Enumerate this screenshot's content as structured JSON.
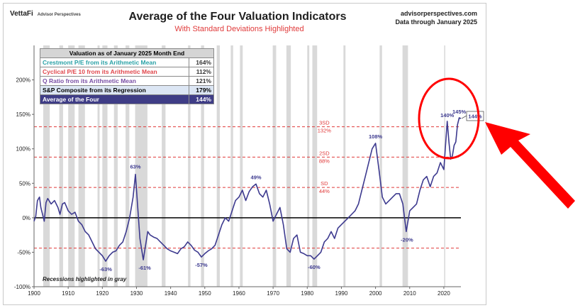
{
  "header": {
    "brand": "VettaFi",
    "brand_sub": "Advisor Perspectives",
    "title": "Average of the Four Valuation Indicators",
    "subtitle": "With Standard Deviations Highlighted",
    "source_line1": "advisorperspectives.com",
    "source_line2": "Data through January 2025"
  },
  "table": {
    "header": "Valuation as of January 2025 Month End",
    "rows": [
      {
        "label": "Crestmont P/E from its Arithmetic Mean",
        "value": "164%",
        "color": "#2aa1a6"
      },
      {
        "label": "Cyclical P/E 10 from its Arithmetic Mean",
        "value": "112%",
        "color": "#e0474c"
      },
      {
        "label": "Q Ratio from its Arithmetic Mean",
        "value": "121%",
        "color": "#7a4fa5"
      },
      {
        "label": "S&P Composite from its Regression",
        "value": "179%",
        "color": "#000000"
      },
      {
        "label": "Average of the Four",
        "value": "144%",
        "color": "#ffffff"
      }
    ]
  },
  "footnote": "Recessions highlighted in gray",
  "chart_data": {
    "type": "line",
    "title": "Average of the Four Valuation Indicators",
    "subtitle": "With Standard Deviations Highlighted",
    "xlim": [
      1900,
      2025
    ],
    "ylim": [
      -100,
      250
    ],
    "x_ticks": [
      1900,
      1910,
      1920,
      1930,
      1940,
      1950,
      1960,
      1970,
      1980,
      1990,
      2000,
      2010,
      2020
    ],
    "x_tick_labels": [
      "1900",
      "1910",
      "1920",
      "1930",
      "1940",
      "1950",
      "1960",
      "1970",
      "1980",
      "1990",
      "2000",
      "2010",
      "2020"
    ],
    "y_ticks": [
      -100,
      -50,
      0,
      50,
      100,
      150,
      200
    ],
    "y_tick_labels": [
      "-100%",
      "-50%",
      "0%",
      "50%",
      "100%",
      "150%",
      "200%"
    ],
    "series": [
      {
        "name": "Average of the Four",
        "color": "#3d3a8f",
        "x": [
          1900,
          1900.5,
          1901,
          1901.6,
          1902,
          1903,
          1903.5,
          1904,
          1905,
          1906,
          1907,
          1907.6,
          1908.3,
          1909,
          1910,
          1911,
          1912,
          1913,
          1914,
          1915,
          1916,
          1917,
          1918,
          1919,
          1920,
          1921,
          1922,
          1923,
          1924,
          1925,
          1926,
          1927,
          1928,
          1929,
          1929.7,
          1930.3,
          1931,
          1932,
          1932.5,
          1933.3,
          1934,
          1935,
          1936,
          1937,
          1938,
          1939,
          1940,
          1941,
          1942,
          1943,
          1944,
          1945,
          1946,
          1947,
          1948,
          1949,
          1950,
          1951,
          1952,
          1953,
          1954,
          1955,
          1956,
          1957,
          1958,
          1959,
          1960,
          1961,
          1962,
          1963,
          1964,
          1965,
          1966,
          1967,
          1968,
          1969,
          1970,
          1971,
          1972,
          1973,
          1974,
          1975,
          1976,
          1977,
          1978,
          1979,
          1980,
          1981,
          1982,
          1983,
          1984,
          1985,
          1986,
          1987,
          1988,
          1989,
          1990,
          1991,
          1992,
          1993,
          1994,
          1995,
          1996,
          1997,
          1998,
          1999,
          2000,
          2001,
          2002,
          2003,
          2004,
          2005,
          2006,
          2007,
          2008,
          2009,
          2010,
          2011,
          2012,
          2013,
          2014,
          2015,
          2016,
          2017,
          2018,
          2019,
          2020,
          2021,
          2021.5,
          2022,
          2022.5,
          2023,
          2023.5,
          2024,
          2024.5,
          2025
        ],
        "y": [
          -5,
          2,
          25,
          30,
          15,
          -5,
          22,
          28,
          20,
          25,
          15,
          5,
          20,
          22,
          10,
          5,
          8,
          -5,
          -10,
          -20,
          -25,
          -35,
          -45,
          -50,
          -55,
          -63,
          -55,
          -50,
          -48,
          -40,
          -35,
          -20,
          0,
          30,
          63,
          20,
          -30,
          -61,
          -45,
          -20,
          -25,
          -28,
          -30,
          -35,
          -40,
          -45,
          -48,
          -50,
          -52,
          -45,
          -42,
          -35,
          -40,
          -47,
          -50,
          -57,
          -52,
          -48,
          -45,
          -40,
          -25,
          -10,
          0,
          -5,
          10,
          25,
          30,
          40,
          25,
          38,
          45,
          49,
          35,
          30,
          40,
          20,
          -5,
          5,
          15,
          -10,
          -45,
          -50,
          -30,
          -25,
          -50,
          -52,
          -55,
          -55,
          -60,
          -55,
          -50,
          -35,
          -30,
          -20,
          -30,
          -15,
          -10,
          -5,
          0,
          5,
          10,
          20,
          40,
          60,
          80,
          100,
          108,
          70,
          30,
          20,
          25,
          30,
          35,
          35,
          20,
          -20,
          10,
          15,
          20,
          40,
          55,
          60,
          45,
          60,
          65,
          80,
          70,
          140,
          110,
          85,
          90,
          105,
          110,
          135,
          145,
          144
        ]
      }
    ],
    "reference_lines": [
      {
        "value": 132,
        "label": "3SD",
        "value_label": "132%",
        "style": "dashed",
        "color": "#e03a3a"
      },
      {
        "value": 88,
        "label": "2SD",
        "value_label": "88%",
        "style": "dashed",
        "color": "#e03a3a"
      },
      {
        "value": 44,
        "label": "SD",
        "value_label": "44%",
        "style": "dashed",
        "color": "#e03a3a"
      },
      {
        "value": 0,
        "label": "",
        "value_label": "",
        "style": "solid",
        "color": "#000000"
      },
      {
        "value": -44,
        "label": "",
        "value_label": "",
        "style": "dashed",
        "color": "#e03a3a"
      }
    ],
    "annotations": [
      {
        "x": 1929.7,
        "y": 63,
        "text": "63%"
      },
      {
        "x": 1921,
        "y": -63,
        "text": "-63%"
      },
      {
        "x": 1932,
        "y": -61,
        "text": "-61%"
      },
      {
        "x": 1949,
        "y": -57,
        "text": "-57%"
      },
      {
        "x": 1965,
        "y": 49,
        "text": "49%"
      },
      {
        "x": 1982,
        "y": -60,
        "text": "-60%"
      },
      {
        "x": 2000,
        "y": 108,
        "text": "108%"
      },
      {
        "x": 2009,
        "y": -20,
        "text": "-20%"
      },
      {
        "x": 2021,
        "y": 140,
        "text": "140%"
      },
      {
        "x": 2024.5,
        "y": 145,
        "text": "145%"
      },
      {
        "x": 2025,
        "y": 144,
        "text": "144%"
      }
    ],
    "recessions": [
      [
        1902.7,
        1904.6
      ],
      [
        1907.4,
        1908.5
      ],
      [
        1910.0,
        1911.9
      ],
      [
        1913.0,
        1914.9
      ],
      [
        1918.6,
        1919.2
      ],
      [
        1920.0,
        1921.5
      ],
      [
        1923.4,
        1924.5
      ],
      [
        1926.8,
        1927.9
      ],
      [
        1929.6,
        1933.2
      ],
      [
        1937.4,
        1938.5
      ],
      [
        1945.1,
        1945.8
      ],
      [
        1948.9,
        1949.8
      ],
      [
        1953.5,
        1954.4
      ],
      [
        1957.6,
        1958.3
      ],
      [
        1960.3,
        1961.1
      ],
      [
        1969.9,
        1970.9
      ],
      [
        1973.9,
        1975.2
      ],
      [
        1980.0,
        1980.6
      ],
      [
        1981.5,
        1982.9
      ],
      [
        1990.6,
        1991.2
      ],
      [
        2001.2,
        2001.9
      ],
      [
        2007.9,
        2009.5
      ],
      [
        2020.1,
        2020.4
      ]
    ],
    "recession_color": "#d9d9d9",
    "legend": "none",
    "grid": false
  },
  "highlight": {
    "ellipse_color": "#ff0000",
    "arrow_color": "#ff0000"
  }
}
